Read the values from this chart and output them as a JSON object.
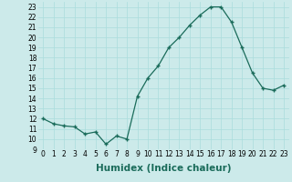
{
  "x": [
    0,
    1,
    2,
    3,
    4,
    5,
    6,
    7,
    8,
    9,
    10,
    11,
    12,
    13,
    14,
    15,
    16,
    17,
    18,
    19,
    20,
    21,
    22,
    23
  ],
  "y": [
    12,
    11.5,
    11.3,
    11.2,
    10.5,
    10.7,
    9.5,
    10.3,
    10.0,
    14.2,
    16.0,
    17.2,
    19.0,
    20.0,
    21.2,
    22.2,
    23.0,
    23.0,
    21.5,
    19.0,
    16.5,
    15.0,
    14.8,
    15.3
  ],
  "line_color": "#1a6b5a",
  "marker": "+",
  "marker_size": 3,
  "marker_lw": 1.0,
  "bg_color": "#cceaea",
  "grid_color": "#aadddd",
  "xlabel": "Humidex (Indice chaleur)",
  "ylim": [
    9,
    23.5
  ],
  "xlim": [
    -0.5,
    23.5
  ],
  "yticks": [
    9,
    10,
    11,
    12,
    13,
    14,
    15,
    16,
    17,
    18,
    19,
    20,
    21,
    22,
    23
  ],
  "xticks": [
    0,
    1,
    2,
    3,
    4,
    5,
    6,
    7,
    8,
    9,
    10,
    11,
    12,
    13,
    14,
    15,
    16,
    17,
    18,
    19,
    20,
    21,
    22,
    23
  ],
  "tick_label_size": 5.5,
  "xlabel_size": 7.5,
  "line_width": 0.9
}
